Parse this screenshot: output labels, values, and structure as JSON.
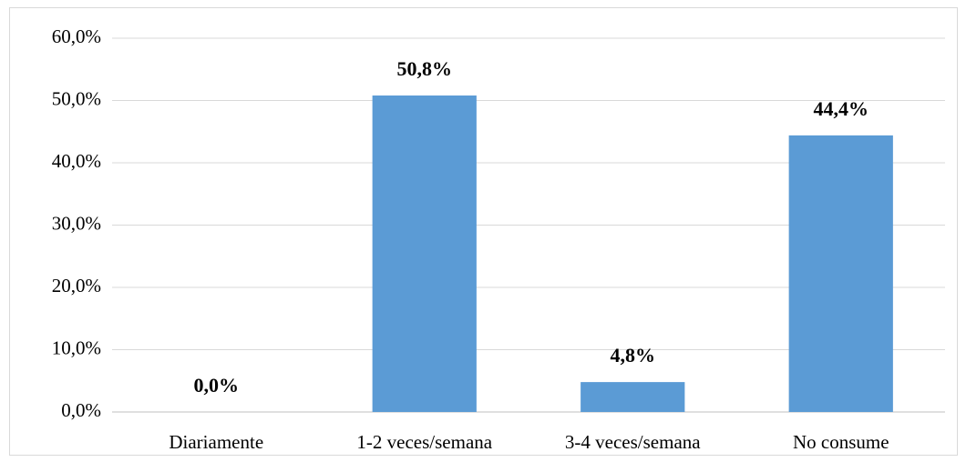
{
  "chart_data": {
    "type": "bar",
    "categories": [
      "Diariamente",
      "1-2 veces/semana",
      "3-4 veces/semana",
      "No consume"
    ],
    "values": [
      0,
      50.8,
      4.8,
      44.4
    ],
    "value_labels": [
      "0,0%",
      "50,8%",
      "4,8%",
      "44,4%"
    ],
    "color": "#5b9bd5",
    "ylim": [
      0,
      60
    ],
    "yticks": [
      {
        "value": 0,
        "label": "0,0%"
      },
      {
        "value": 10,
        "label": "10,0%"
      },
      {
        "value": 20,
        "label": "20,0%"
      },
      {
        "value": 30,
        "label": "30,0%"
      },
      {
        "value": 40,
        "label": "40,0%"
      },
      {
        "value": 50,
        "label": "50,0%"
      },
      {
        "value": 60,
        "label": "60,0%"
      }
    ],
    "grid": true
  }
}
